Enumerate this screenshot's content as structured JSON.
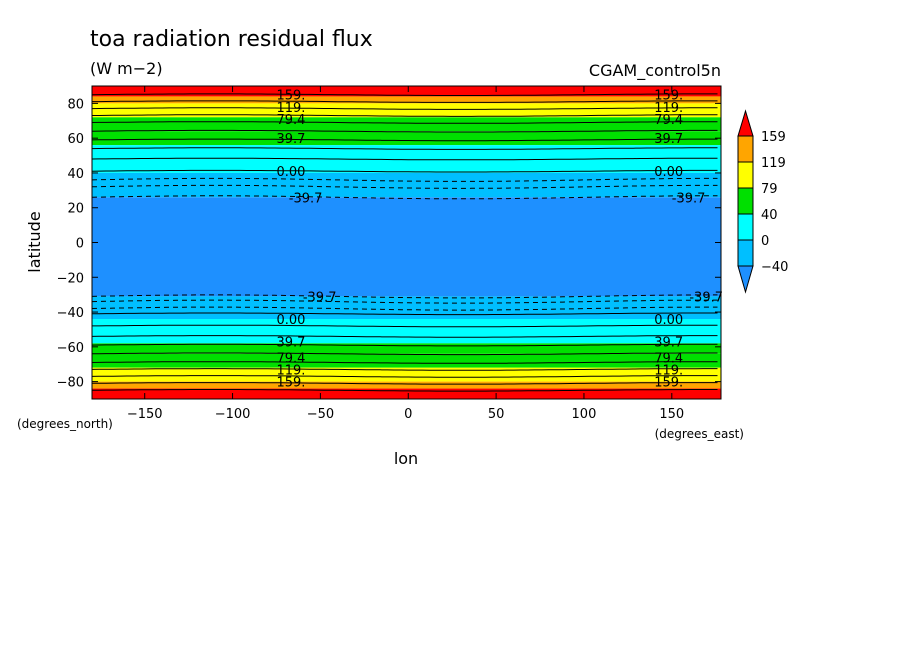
{
  "chart_data": {
    "type": "heatmap",
    "title": "toa radiation residual flux",
    "units": "(W m−2)",
    "dataset": "CGAM_control5n",
    "xlabel": "lon",
    "ylabel": "latitude",
    "x_unit_label": "(degrees_east)",
    "y_unit_label": "(degrees_north)",
    "xlim": [
      -180,
      178
    ],
    "ylim": [
      -90,
      90
    ],
    "x_ticks": [
      -150,
      -100,
      -50,
      0,
      50,
      100,
      150
    ],
    "y_ticks": [
      80,
      60,
      40,
      20,
      0,
      -20,
      -40,
      -60,
      -80
    ],
    "colorbar": {
      "levels": [
        -40,
        0,
        40,
        79,
        119,
        159
      ],
      "labels": [
        "159",
        "119",
        "79",
        "40",
        "0",
        "−40"
      ],
      "colors": {
        "below_-40": "#1e90ff",
        "-40_to_0": "#00bfff",
        "0_to_40": "#00ffff",
        "40_to_79": "#00e000",
        "79_to_119": "#ffff00",
        "119_to_159": "#ffa500",
        "above_159": "#ff0000"
      }
    },
    "contour_levels": [
      -39.7,
      0.0,
      39.7,
      79.4,
      119.0,
      159.0
    ],
    "contour_labels": [
      "-39.7",
      "0.00",
      "39.7",
      "79.4",
      "119.",
      "159."
    ],
    "bands": [
      {
        "lat_from": 90,
        "lat_to": 84,
        "color": "#ff0000"
      },
      {
        "lat_from": 84,
        "lat_to": 80,
        "color": "#ffa500"
      },
      {
        "lat_from": 80,
        "lat_to": 72,
        "color": "#ffff00"
      },
      {
        "lat_from": 72,
        "lat_to": 64,
        "color": "#00e000"
      },
      {
        "lat_from": 64,
        "lat_to": 56,
        "color": "#00e000"
      },
      {
        "lat_from": 56,
        "lat_to": 40,
        "color": "#00ffff"
      },
      {
        "lat_from": 40,
        "lat_to": 26,
        "color": "#00bfff"
      },
      {
        "lat_from": 26,
        "lat_to": -31,
        "color": "#1e90ff"
      },
      {
        "lat_from": -31,
        "lat_to": -44,
        "color": "#00bfff"
      },
      {
        "lat_from": -44,
        "lat_to": -58,
        "color": "#00ffff"
      },
      {
        "lat_from": -58,
        "lat_to": -64,
        "color": "#00e000"
      },
      {
        "lat_from": -64,
        "lat_to": -72,
        "color": "#00e000"
      },
      {
        "lat_from": -72,
        "lat_to": -80,
        "color": "#ffff00"
      },
      {
        "lat_from": -80,
        "lat_to": -84,
        "color": "#ffa500"
      },
      {
        "lat_from": -84,
        "lat_to": -90,
        "color": "#ff0000"
      }
    ],
    "solid_contours_lat": [
      85,
      81,
      77,
      73,
      69,
      64,
      59,
      54,
      48,
      41,
      -41,
      -48,
      -54,
      -59,
      -64,
      -69,
      -73,
      -77,
      -81,
      -85
    ],
    "dashed_contours_lat": [
      36,
      32,
      26,
      -31,
      -34,
      -38
    ],
    "contour_label_positions": [
      {
        "text": "159.",
        "lat": 85,
        "lons": [
          -75,
          140
        ]
      },
      {
        "text": "119.",
        "lat": 78,
        "lons": [
          -75,
          140
        ]
      },
      {
        "text": "79.4",
        "lat": 71,
        "lons": [
          -75,
          140
        ]
      },
      {
        "text": "39.7",
        "lat": 60,
        "lons": [
          -75,
          140
        ]
      },
      {
        "text": "0.00",
        "lat": 41,
        "lons": [
          -75,
          140
        ]
      },
      {
        "text": "-39.7",
        "lat": 26,
        "lons": [
          -68,
          150
        ]
      },
      {
        "text": "-39.7",
        "lat": -31,
        "lons": [
          -60,
          160
        ]
      },
      {
        "text": "0.00",
        "lat": -44,
        "lons": [
          -75,
          140
        ]
      },
      {
        "text": "39.7",
        "lat": -57,
        "lons": [
          -75,
          140
        ]
      },
      {
        "text": "79.4",
        "lat": -66,
        "lons": [
          -75,
          140
        ]
      },
      {
        "text": "119.",
        "lat": -73,
        "lons": [
          -75,
          140
        ]
      },
      {
        "text": "159.",
        "lat": -80,
        "lons": [
          -75,
          140
        ]
      }
    ]
  }
}
